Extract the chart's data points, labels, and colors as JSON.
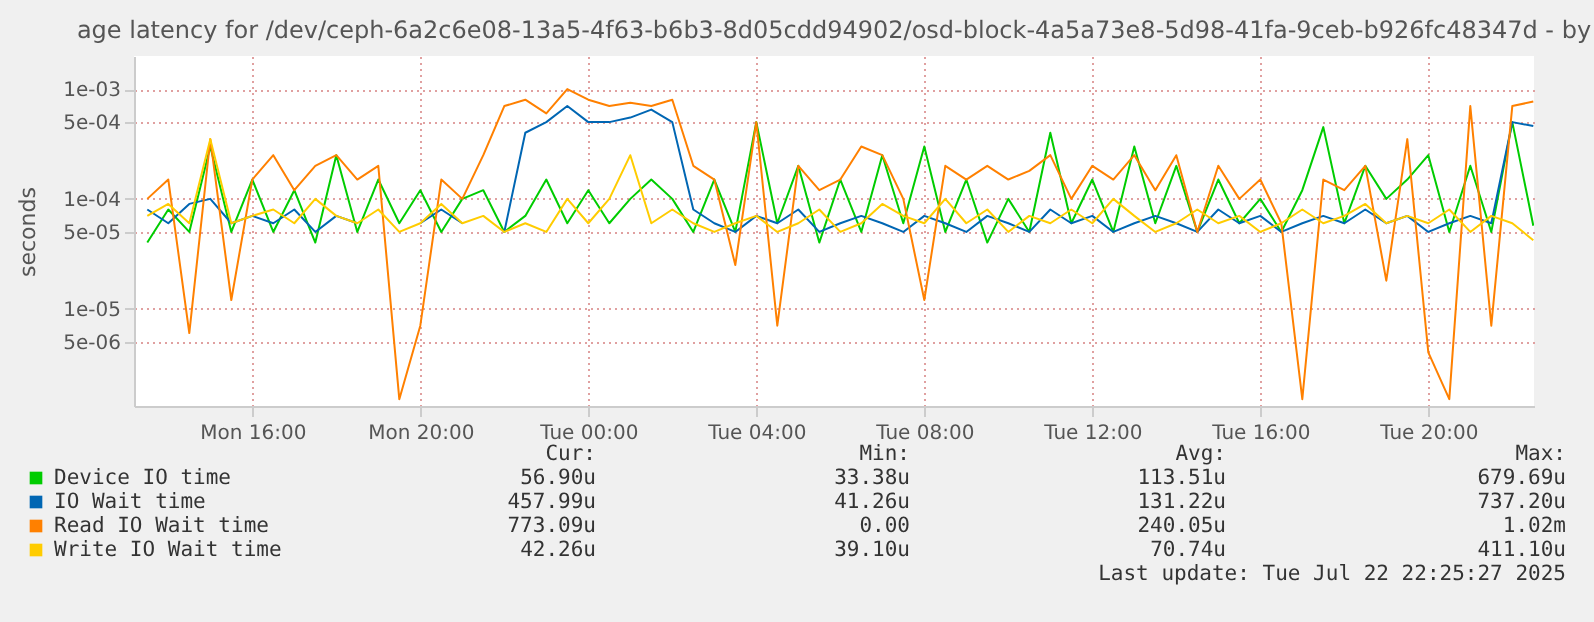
{
  "chart_data": {
    "type": "line",
    "title": "age latency for /dev/ceph-6a2c6e08-13a5-4f63-b6b3-8d05cdd94902/osd-block-4a5a73e8-5d98-41fa-9ceb-b926fc48347d - by",
    "ylabel": "seconds",
    "x": [
      "2025-07-21T13:30",
      "2025-07-21T14:00",
      "2025-07-21T14:30",
      "2025-07-21T15:00",
      "2025-07-21T15:30",
      "2025-07-21T16:00",
      "2025-07-21T16:30",
      "2025-07-21T17:00",
      "2025-07-21T17:30",
      "2025-07-21T18:00",
      "2025-07-21T18:30",
      "2025-07-21T19:00",
      "2025-07-21T19:30",
      "2025-07-21T20:00",
      "2025-07-21T20:30",
      "2025-07-21T21:00",
      "2025-07-21T21:30",
      "2025-07-21T22:00",
      "2025-07-21T22:30",
      "2025-07-21T23:00",
      "2025-07-21T23:30",
      "2025-07-22T00:00",
      "2025-07-22T00:30",
      "2025-07-22T01:00",
      "2025-07-22T01:30",
      "2025-07-22T02:00",
      "2025-07-22T02:30",
      "2025-07-22T03:00",
      "2025-07-22T03:30",
      "2025-07-22T04:00",
      "2025-07-22T04:30",
      "2025-07-22T05:00",
      "2025-07-22T05:30",
      "2025-07-22T06:00",
      "2025-07-22T06:30",
      "2025-07-22T07:00",
      "2025-07-22T07:30",
      "2025-07-22T08:00",
      "2025-07-22T08:30",
      "2025-07-22T09:00",
      "2025-07-22T09:30",
      "2025-07-22T10:00",
      "2025-07-22T10:30",
      "2025-07-22T11:00",
      "2025-07-22T11:30",
      "2025-07-22T12:00",
      "2025-07-22T12:30",
      "2025-07-22T13:00",
      "2025-07-22T13:30",
      "2025-07-22T14:00",
      "2025-07-22T14:30",
      "2025-07-22T15:00",
      "2025-07-22T15:30",
      "2025-07-22T16:00",
      "2025-07-22T16:30",
      "2025-07-22T17:00",
      "2025-07-22T17:30",
      "2025-07-22T18:00",
      "2025-07-22T18:30",
      "2025-07-22T19:00",
      "2025-07-22T19:30",
      "2025-07-22T20:00",
      "2025-07-22T20:30",
      "2025-07-22T21:00",
      "2025-07-22T21:30",
      "2025-07-22T22:00",
      "2025-07-22T22:30"
    ],
    "series": [
      {
        "name": "Device IO time",
        "color": "#00cc00",
        "values": [
          4e-05,
          8e-05,
          5e-05,
          0.0003,
          5e-05,
          0.00015,
          5e-05,
          0.00012,
          4e-05,
          0.00025,
          5e-05,
          0.00015,
          6e-05,
          0.00012,
          5e-05,
          0.0001,
          0.00012,
          5e-05,
          7e-05,
          0.00015,
          6e-05,
          0.00012,
          6e-05,
          0.0001,
          0.00015,
          0.0001,
          5e-05,
          0.00015,
          5e-05,
          0.0005,
          6e-05,
          0.0002,
          4e-05,
          0.00015,
          5e-05,
          0.00025,
          6e-05,
          0.0003,
          5e-05,
          0.00015,
          4e-05,
          0.0001,
          5e-05,
          0.0004,
          6e-05,
          0.00015,
          5e-05,
          0.0003,
          6e-05,
          0.0002,
          5e-05,
          0.00015,
          6e-05,
          0.0001,
          5e-05,
          0.00012,
          0.00045,
          6e-05,
          0.0002,
          0.0001,
          0.00015,
          0.00025,
          5e-05,
          0.0002,
          5e-05,
          0.0005,
          5.7e-05
        ]
      },
      {
        "name": "IO Wait time",
        "color": "#0066b3",
        "values": [
          8e-05,
          6e-05,
          9e-05,
          0.0001,
          6e-05,
          7e-05,
          6e-05,
          8e-05,
          5e-05,
          7e-05,
          6e-05,
          null,
          null,
          6e-05,
          8e-05,
          6e-05,
          null,
          5e-05,
          0.0004,
          0.0005,
          0.0007,
          0.0005,
          0.0005,
          0.00055,
          0.00065,
          0.0005,
          8e-05,
          6e-05,
          5e-05,
          7e-05,
          6e-05,
          8e-05,
          5e-05,
          6e-05,
          7e-05,
          6e-05,
          5e-05,
          7e-05,
          6e-05,
          5e-05,
          7e-05,
          6e-05,
          5e-05,
          8e-05,
          6e-05,
          7e-05,
          5e-05,
          6e-05,
          7e-05,
          6e-05,
          5e-05,
          8e-05,
          6e-05,
          7e-05,
          5e-05,
          6e-05,
          7e-05,
          6e-05,
          8e-05,
          6e-05,
          7e-05,
          5e-05,
          6e-05,
          7e-05,
          6e-05,
          0.0005,
          0.00046
        ]
      },
      {
        "name": "Read IO Wait time",
        "color": "#ff8000",
        "values": [
          0.0001,
          0.00015,
          6e-06,
          0.00035,
          1.2e-05,
          0.00015,
          0.00025,
          0.00012,
          0.0002,
          0.00025,
          0.00015,
          0.0002,
          1.5e-06,
          7e-06,
          0.00015,
          0.0001,
          0.00025,
          0.0007,
          0.0008,
          0.0006,
          0.001,
          0.0008,
          0.0007,
          0.00075,
          0.0007,
          0.0008,
          0.0002,
          0.00015,
          2.5e-05,
          0.0005,
          7e-06,
          0.0002,
          0.00012,
          0.00015,
          0.0003,
          0.00025,
          0.0001,
          1.2e-05,
          0.0002,
          0.00015,
          0.0002,
          0.00015,
          0.00018,
          0.00025,
          0.0001,
          0.0002,
          0.00015,
          0.00025,
          0.00012,
          0.00025,
          5e-05,
          0.0002,
          0.0001,
          0.00015,
          6e-05,
          1.5e-06,
          0.00015,
          0.00012,
          0.0002,
          1.8e-05,
          0.00035,
          4e-06,
          1.5e-06,
          0.0007,
          7e-06,
          0.0007,
          0.00077
        ]
      },
      {
        "name": "Write IO Wait time",
        "color": "#ffcc00",
        "values": [
          7e-05,
          9e-05,
          6e-05,
          0.00035,
          6e-05,
          7e-05,
          8e-05,
          6e-05,
          0.0001,
          7e-05,
          6e-05,
          8e-05,
          5e-05,
          6e-05,
          9e-05,
          6e-05,
          7e-05,
          5e-05,
          6e-05,
          5e-05,
          0.0001,
          6e-05,
          0.0001,
          0.00025,
          6e-05,
          8e-05,
          6e-05,
          5e-05,
          6e-05,
          7e-05,
          5e-05,
          6e-05,
          8e-05,
          5e-05,
          6e-05,
          9e-05,
          7e-05,
          6e-05,
          0.0001,
          6e-05,
          8e-05,
          5e-05,
          7e-05,
          6e-05,
          8e-05,
          6e-05,
          0.0001,
          7e-05,
          5e-05,
          6e-05,
          8e-05,
          6e-05,
          7e-05,
          5e-05,
          6e-05,
          8e-05,
          6e-05,
          7e-05,
          9e-05,
          6e-05,
          7e-05,
          6e-05,
          8e-05,
          5e-05,
          7e-05,
          6e-05,
          4.2e-05
        ]
      }
    ],
    "xlim": [
      "2025-07-21T13:11",
      "2025-07-22T22:31"
    ],
    "xticks": [
      {
        "value": "2025-07-21T16:00",
        "label": "Mon 16:00"
      },
      {
        "value": "2025-07-21T20:00",
        "label": "Mon 20:00"
      },
      {
        "value": "2025-07-22T00:00",
        "label": "Tue 00:00"
      },
      {
        "value": "2025-07-22T04:00",
        "label": "Tue 04:00"
      },
      {
        "value": "2025-07-22T08:00",
        "label": "Tue 08:00"
      },
      {
        "value": "2025-07-22T12:00",
        "label": "Tue 12:00"
      },
      {
        "value": "2025-07-22T16:00",
        "label": "Tue 16:00"
      },
      {
        "value": "2025-07-22T20:00",
        "label": "Tue 20:00"
      }
    ],
    "ylim": [
      1.3e-06,
      0.002
    ],
    "yticks": [
      {
        "value": 0.001,
        "label": "1e-03"
      },
      {
        "value": 0.0005,
        "label": "5e-04"
      },
      {
        "value": 0.0001,
        "label": "1e-04"
      },
      {
        "value": 5e-05,
        "label": "5e-05"
      },
      {
        "value": 1e-05,
        "label": "1e-05"
      },
      {
        "value": 5e-06,
        "label": "5e-06"
      }
    ],
    "log": "y",
    "grid": true,
    "legend": "bottom",
    "annotations": [
      "Cur:",
      "Min:",
      "Avg:",
      "Max:",
      "56.90u",
      "33.38u",
      "113.51u",
      "679.69u",
      "457.99u",
      "41.26u",
      "131.22u",
      "737.20u",
      "773.09u",
      "0.00",
      "240.05u",
      "1.02m",
      "42.26u",
      "39.10u",
      "70.74u",
      "411.10u",
      "Last update:  Tue Jul 22 22:25:27 2025"
    ]
  }
}
